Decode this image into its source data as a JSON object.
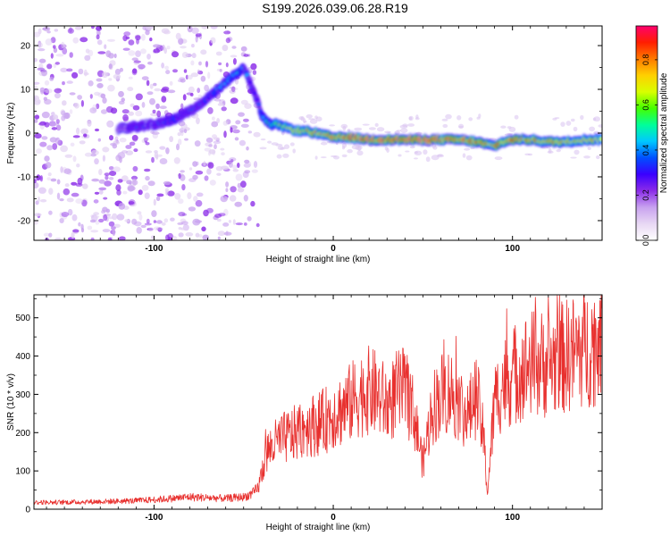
{
  "figure": {
    "title": "S199.2026.039.06.28.R19"
  },
  "chart_data": [
    {
      "type": "heatmap",
      "xlabel": "Height of straight line (km)",
      "ylabel": "Frequency (Hz)",
      "xlim": [
        -167,
        150
      ],
      "ylim": [
        -24.5,
        24.5
      ],
      "xticks": [
        -100,
        0,
        100
      ],
      "yticks": [
        -20,
        -10,
        0,
        10,
        20
      ],
      "colorbar": {
        "label": "Normalized spectral amplitude",
        "range": [
          0,
          0.95
        ],
        "ticks": [
          0.0,
          0.2,
          0.4,
          0.6,
          0.8
        ],
        "colormap": [
          "#ffffff",
          "#e8d8f4",
          "#c8a2ef",
          "#8b2ce8",
          "#3a00ff",
          "#0050ff",
          "#00c8ff",
          "#00ff9a",
          "#44ff00",
          "#d8ff00",
          "#ffd000",
          "#ff7a00",
          "#ff1e00",
          "#ff006e"
        ]
      },
      "ridge": {
        "x": [
          -120,
          -110,
          -100,
          -90,
          -80,
          -70,
          -62,
          -56,
          -50,
          -46,
          -42,
          -40,
          -36,
          -32,
          -28,
          -24,
          -20,
          -15,
          -10,
          -5,
          0,
          10,
          20,
          30,
          40,
          50,
          60,
          70,
          80,
          85,
          90,
          95,
          100,
          110,
          120,
          130,
          140,
          150
        ],
        "y": [
          1,
          1.5,
          2,
          3,
          5,
          8,
          11,
          13,
          15,
          11,
          7,
          4,
          2,
          2,
          1.5,
          1,
          0.5,
          0.5,
          0,
          -0.5,
          -1,
          -1,
          -1.5,
          -1.5,
          -1.5,
          -1.5,
          -1.5,
          -1.5,
          -2,
          -2.5,
          -3,
          -2,
          -1.5,
          -1.5,
          -2,
          -2,
          -1.5,
          -1.5
        ],
        "amplitude": [
          0.25,
          0.3,
          0.3,
          0.35,
          0.3,
          0.35,
          0.4,
          0.45,
          0.4,
          0.35,
          0.35,
          0.4,
          0.5,
          0.55,
          0.6,
          0.6,
          0.65,
          0.7,
          0.75,
          0.75,
          0.8,
          0.85,
          0.85,
          0.85,
          0.85,
          0.85,
          0.85,
          0.8,
          0.8,
          0.75,
          0.75,
          0.8,
          0.8,
          0.75,
          0.75,
          0.75,
          0.7,
          0.7
        ]
      }
    },
    {
      "type": "line",
      "xlabel": "Height of straight line (km)",
      "ylabel": "SNR (10 * v/v)",
      "xlim": [
        -167,
        150
      ],
      "ylim": [
        0,
        560
      ],
      "xticks": [
        -100,
        0,
        100
      ],
      "yticks": [
        0,
        100,
        200,
        300,
        400,
        500
      ],
      "color": "#e8302e",
      "series": [
        {
          "x": [
            -167,
            -150,
            -130,
            -110,
            -90,
            -80,
            -70,
            -60,
            -50,
            -45,
            -42,
            -40,
            -38,
            -35,
            -30,
            -25,
            -20,
            -15,
            -10,
            -5,
            0,
            5,
            10,
            15,
            20,
            25,
            30,
            35,
            40,
            45,
            50,
            55,
            60,
            65,
            70,
            75,
            80,
            84,
            86,
            90,
            95,
            100,
            110,
            120,
            130,
            140,
            150
          ],
          "values": [
            18,
            18,
            20,
            22,
            28,
            32,
            30,
            28,
            32,
            40,
            55,
            90,
            140,
            160,
            180,
            190,
            200,
            220,
            220,
            230,
            250,
            260,
            280,
            300,
            310,
            300,
            270,
            300,
            310,
            250,
            120,
            260,
            300,
            310,
            280,
            240,
            300,
            180,
            40,
            280,
            330,
            350,
            380,
            380,
            400,
            420,
            440
          ]
        }
      ]
    }
  ]
}
